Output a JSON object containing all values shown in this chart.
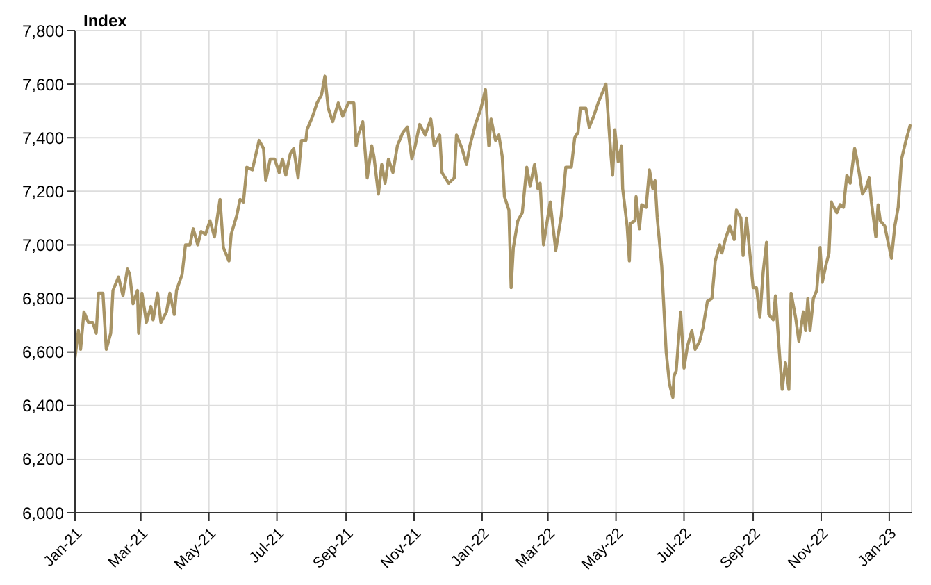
{
  "chart_data": {
    "type": "line",
    "ylabel": "Index",
    "x": [
      "2021-01-01",
      "2021-01-04",
      "2021-01-06",
      "2021-01-09",
      "2021-01-13",
      "2021-01-17",
      "2021-01-20",
      "2021-01-22",
      "2021-01-26",
      "2021-01-29",
      "2021-02-02",
      "2021-02-04",
      "2021-02-09",
      "2021-02-13",
      "2021-02-17",
      "2021-02-19",
      "2021-02-22",
      "2021-02-26",
      "2021-02-27",
      "2021-03-02",
      "2021-03-06",
      "2021-03-10",
      "2021-03-12",
      "2021-03-16",
      "2021-03-19",
      "2021-03-24",
      "2021-03-27",
      "2021-03-31",
      "2021-04-02",
      "2021-04-07",
      "2021-04-10",
      "2021-04-14",
      "2021-04-17",
      "2021-04-21",
      "2021-04-24",
      "2021-04-28",
      "2021-05-02",
      "2021-05-06",
      "2021-05-11",
      "2021-05-14",
      "2021-05-19",
      "2021-05-21",
      "2021-05-26",
      "2021-05-29",
      "2021-06-01",
      "2021-06-04",
      "2021-06-09",
      "2021-06-15",
      "2021-06-19",
      "2021-06-21",
      "2021-06-25",
      "2021-06-29",
      "2021-07-03",
      "2021-07-06",
      "2021-07-09",
      "2021-07-13",
      "2021-07-16",
      "2021-07-20",
      "2021-07-23",
      "2021-07-27",
      "2021-07-28",
      "2021-08-02",
      "2021-08-06",
      "2021-08-10",
      "2021-08-13",
      "2021-08-16",
      "2021-08-20",
      "2021-08-25",
      "2021-08-29",
      "2021-09-03",
      "2021-09-08",
      "2021-09-10",
      "2021-09-12",
      "2021-09-16",
      "2021-09-20",
      "2021-09-24",
      "2021-09-26",
      "2021-09-30",
      "2021-10-03",
      "2021-10-06",
      "2021-10-09",
      "2021-10-13",
      "2021-10-17",
      "2021-10-22",
      "2021-10-26",
      "2021-10-30",
      "2021-11-02",
      "2021-11-06",
      "2021-11-11",
      "2021-11-16",
      "2021-11-19",
      "2021-11-24",
      "2021-11-26",
      "2021-12-02",
      "2021-12-07",
      "2021-12-09",
      "2021-12-14",
      "2021-12-18",
      "2021-12-21",
      "2021-12-26",
      "2021-12-31",
      "2022-01-04",
      "2022-01-07",
      "2022-01-09",
      "2022-01-13",
      "2022-01-16",
      "2022-01-19",
      "2022-01-21",
      "2022-01-25",
      "2022-01-27",
      "2022-01-29",
      "2022-02-02",
      "2022-02-06",
      "2022-02-10",
      "2022-02-13",
      "2022-02-17",
      "2022-02-20",
      "2022-02-22",
      "2022-02-25",
      "2022-03-03",
      "2022-03-08",
      "2022-03-13",
      "2022-03-17",
      "2022-03-22",
      "2022-03-25",
      "2022-03-28",
      "2022-03-30",
      "2022-04-04",
      "2022-04-07",
      "2022-04-11",
      "2022-04-15",
      "2022-04-22",
      "2022-04-26",
      "2022-04-28",
      "2022-04-30",
      "2022-05-03",
      "2022-05-06",
      "2022-05-07",
      "2022-05-11",
      "2022-05-13",
      "2022-05-14",
      "2022-05-18",
      "2022-05-19",
      "2022-05-22",
      "2022-05-24",
      "2022-05-28",
      "2022-05-31",
      "2022-06-03",
      "2022-06-05",
      "2022-06-07",
      "2022-06-11",
      "2022-06-15",
      "2022-06-18",
      "2022-06-21",
      "2022-06-22",
      "2022-06-24",
      "2022-06-28",
      "2022-07-01",
      "2022-07-04",
      "2022-07-08",
      "2022-07-11",
      "2022-07-15",
      "2022-07-18",
      "2022-07-22",
      "2022-07-26",
      "2022-07-29",
      "2022-08-02",
      "2022-08-04",
      "2022-08-07",
      "2022-08-11",
      "2022-08-15",
      "2022-08-17",
      "2022-08-21",
      "2022-08-23",
      "2022-08-26",
      "2022-08-29",
      "2022-09-01",
      "2022-09-04",
      "2022-09-07",
      "2022-09-10",
      "2022-09-13",
      "2022-09-15",
      "2022-09-19",
      "2022-09-21",
      "2022-09-25",
      "2022-09-27",
      "2022-09-30",
      "2022-10-03",
      "2022-10-05",
      "2022-10-09",
      "2022-10-12",
      "2022-10-16",
      "2022-10-18",
      "2022-10-20",
      "2022-10-22",
      "2022-10-25",
      "2022-10-28",
      "2022-10-31",
      "2022-11-02",
      "2022-11-05",
      "2022-11-08",
      "2022-11-10",
      "2022-11-15",
      "2022-11-18",
      "2022-11-21",
      "2022-11-24",
      "2022-11-27",
      "2022-12-01",
      "2022-12-03",
      "2022-12-05",
      "2022-12-08",
      "2022-12-11",
      "2022-12-14",
      "2022-12-16",
      "2022-12-20",
      "2022-12-22",
      "2022-12-24",
      "2022-12-28",
      "2022-12-31",
      "2023-01-03",
      "2023-01-06",
      "2023-01-09",
      "2023-01-12",
      "2023-01-16",
      "2023-01-20"
    ],
    "series": [
      {
        "color": "#a89465",
        "values": [
          6580,
          6680,
          6610,
          6750,
          6710,
          6710,
          6670,
          6820,
          6820,
          6610,
          6670,
          6830,
          6880,
          6810,
          6910,
          6890,
          6780,
          6830,
          6670,
          6820,
          6710,
          6770,
          6720,
          6820,
          6710,
          6750,
          6820,
          6740,
          6830,
          6890,
          7000,
          7000,
          7060,
          7000,
          7050,
          7040,
          7090,
          7030,
          7170,
          6990,
          6940,
          7040,
          7110,
          7170,
          7160,
          7290,
          7280,
          7390,
          7360,
          7240,
          7320,
          7320,
          7270,
          7320,
          7260,
          7340,
          7360,
          7250,
          7390,
          7390,
          7430,
          7480,
          7530,
          7560,
          7630,
          7510,
          7460,
          7530,
          7480,
          7530,
          7530,
          7370,
          7410,
          7460,
          7250,
          7370,
          7330,
          7190,
          7300,
          7230,
          7320,
          7270,
          7370,
          7420,
          7440,
          7320,
          7370,
          7450,
          7410,
          7470,
          7370,
          7410,
          7270,
          7230,
          7250,
          7410,
          7360,
          7300,
          7370,
          7450,
          7510,
          7580,
          7370,
          7470,
          7390,
          7410,
          7330,
          7180,
          7130,
          6840,
          6990,
          7090,
          7120,
          7290,
          7220,
          7300,
          7210,
          7230,
          7000,
          7160,
          6980,
          7110,
          7290,
          7290,
          7400,
          7420,
          7510,
          7510,
          7440,
          7480,
          7530,
          7600,
          7360,
          7260,
          7430,
          7310,
          7370,
          7210,
          7070,
          6940,
          7080,
          7090,
          7180,
          7060,
          7150,
          7140,
          7280,
          7210,
          7240,
          7100,
          6920,
          6600,
          6480,
          6430,
          6510,
          6530,
          6750,
          6540,
          6620,
          6680,
          6610,
          6640,
          6690,
          6790,
          6800,
          6940,
          7000,
          6970,
          7020,
          7070,
          7020,
          7130,
          7100,
          6960,
          7100,
          6970,
          6840,
          6840,
          6730,
          6900,
          7010,
          6740,
          6720,
          6810,
          6570,
          6460,
          6560,
          6460,
          6820,
          6730,
          6640,
          6750,
          6680,
          6800,
          6680,
          6800,
          6830,
          6990,
          6860,
          6920,
          6970,
          7160,
          7120,
          7150,
          7140,
          7260,
          7230,
          7360,
          7320,
          7270,
          7190,
          7210,
          7250,
          7160,
          7030,
          7150,
          7090,
          7070,
          7010,
          6950,
          7070,
          7140,
          7320,
          7390,
          7450
        ]
      }
    ],
    "xlim": [
      "2021-01-01",
      "2023-01-21"
    ],
    "xticks": [
      {
        "value": "2021-01-01",
        "label": "Jan-21"
      },
      {
        "value": "2021-03-01",
        "label": "Mar-21"
      },
      {
        "value": "2021-05-01",
        "label": "May-21"
      },
      {
        "value": "2021-07-01",
        "label": "Jul-21"
      },
      {
        "value": "2021-09-01",
        "label": "Sep-21"
      },
      {
        "value": "2021-11-01",
        "label": "Nov-21"
      },
      {
        "value": "2022-01-01",
        "label": "Jan-22"
      },
      {
        "value": "2022-03-01",
        "label": "Mar-22"
      },
      {
        "value": "2022-05-01",
        "label": "May-22"
      },
      {
        "value": "2022-07-01",
        "label": "Jul-22"
      },
      {
        "value": "2022-09-01",
        "label": "Sep-22"
      },
      {
        "value": "2022-11-01",
        "label": "Nov-22"
      },
      {
        "value": "2023-01-01",
        "label": "Jan-23"
      }
    ],
    "ylim": [
      6000,
      7800
    ],
    "yticks": [
      {
        "value": 6000,
        "label": "6,000"
      },
      {
        "value": 6200,
        "label": "6,200"
      },
      {
        "value": 6400,
        "label": "6,400"
      },
      {
        "value": 6600,
        "label": "6,600"
      },
      {
        "value": 6800,
        "label": "6,800"
      },
      {
        "value": 7000,
        "label": "7,000"
      },
      {
        "value": 7200,
        "label": "7,200"
      },
      {
        "value": 7400,
        "label": "7,400"
      },
      {
        "value": 7600,
        "label": "7,600"
      },
      {
        "value": 7800,
        "label": "7,800"
      }
    ],
    "grid": true,
    "marker": "none",
    "line_style": "solid"
  }
}
